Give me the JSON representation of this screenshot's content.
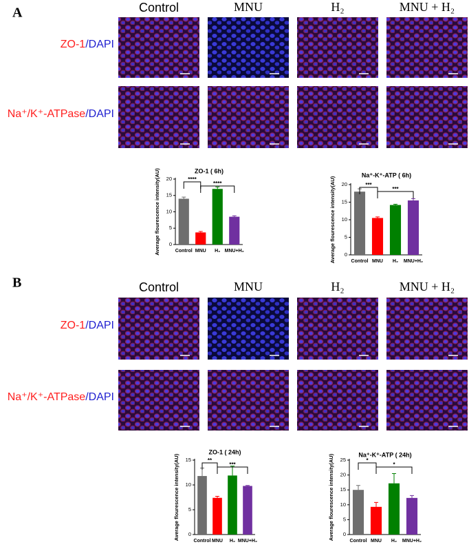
{
  "panels": [
    {
      "label": "A",
      "column_headers": [
        "Control",
        "MNU",
        "H₂",
        "MNU + H₂"
      ],
      "row_labels": [
        {
          "marker": "ZO-1",
          "counterstain": "/DAPI"
        },
        {
          "marker": "Na⁺/K⁺-ATPase",
          "counterstain": "/DAPI"
        }
      ]
    },
    {
      "label": "B",
      "column_headers": [
        "Control",
        "MNU",
        "H₂",
        "MNU + H₂"
      ],
      "row_labels": [
        {
          "marker": "ZO-1",
          "counterstain": "/DAPI"
        },
        {
          "marker": "Na⁺/K⁺-ATPase",
          "counterstain": "/DAPI"
        }
      ]
    }
  ],
  "chart_data": [
    {
      "type": "bar",
      "title": "ZO-1 ( 6h)",
      "y_label": "Average flourescence intensity(AU)",
      "categories": [
        "Control",
        "MNU",
        "H₂",
        "MNU+H₂"
      ],
      "values": [
        14,
        3.7,
        17,
        8.5
      ],
      "errors": [
        0.5,
        0.3,
        0.6,
        0.3
      ],
      "colors": [
        "#6e6e6e",
        "#ff0000",
        "#008000",
        "#7030a0"
      ],
      "ylim": [
        0,
        20
      ],
      "yticks": [
        0,
        5,
        10,
        15,
        20
      ],
      "annotations": [
        "****",
        "****"
      ]
    },
    {
      "type": "bar",
      "title": "Na⁺-K⁺-ATP ( 6h)",
      "y_label": "Average flourescence intensity(AU)",
      "categories": [
        "Control",
        "MNU",
        "H₂",
        "MNU+H₂"
      ],
      "values": [
        18,
        10.5,
        14.2,
        15.5
      ],
      "errors": [
        0.8,
        0.3,
        0.2,
        0.5
      ],
      "colors": [
        "#6e6e6e",
        "#ff0000",
        "#008000",
        "#7030a0"
      ],
      "ylim": [
        0,
        20
      ],
      "yticks": [
        0,
        5,
        10,
        15,
        20
      ],
      "annotations": [
        "***",
        "***"
      ]
    },
    {
      "type": "bar",
      "title": "ZO-1 ( 24h)",
      "y_label": "Average flourescence intensity(AU)",
      "categories": [
        "Control",
        "MNU",
        "H₂",
        "MNU+H₂"
      ],
      "values": [
        11.8,
        7.4,
        11.9,
        9.8
      ],
      "errors": [
        1.6,
        0.3,
        1.9,
        0.1
      ],
      "colors": [
        "#6e6e6e",
        "#ff0000",
        "#008000",
        "#7030a0"
      ],
      "ylim": [
        0,
        15
      ],
      "yticks": [
        0,
        5,
        10,
        15
      ],
      "annotations": [
        "**",
        "***"
      ]
    },
    {
      "type": "bar",
      "title": "Na⁺-K⁺-ATP ( 24h)",
      "y_label": "Average flourescence intensity(AU)",
      "categories": [
        "Control",
        "MNU",
        "H₂",
        "MNU+H₂"
      ],
      "values": [
        15,
        9.3,
        17.2,
        12.3
      ],
      "errors": [
        1.5,
        1.5,
        3.3,
        0.8
      ],
      "colors": [
        "#6e6e6e",
        "#ff0000",
        "#008000",
        "#7030a0"
      ],
      "ylim": [
        0,
        25
      ],
      "yticks": [
        0,
        5,
        10,
        15,
        20,
        25
      ],
      "annotations": [
        "*",
        "*"
      ]
    }
  ]
}
